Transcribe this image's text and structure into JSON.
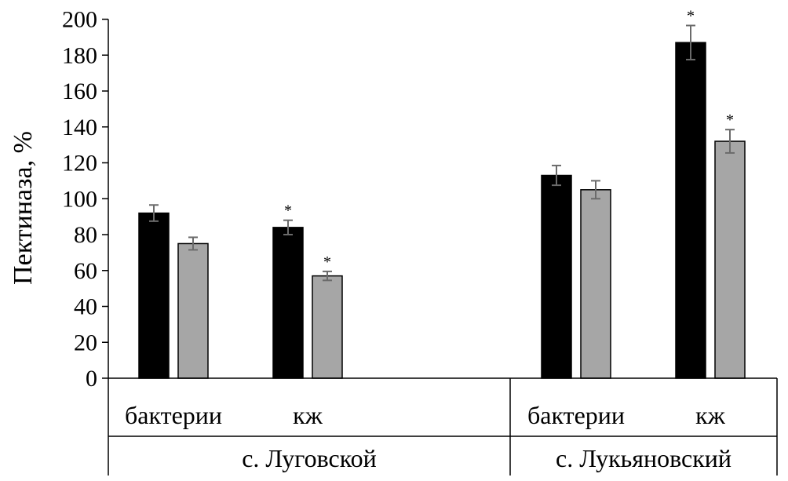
{
  "chart_data": {
    "type": "bar",
    "ylabel": "Пектиназа, %",
    "ylim": [
      0,
      200
    ],
    "yticks": [
      0,
      20,
      40,
      60,
      80,
      100,
      120,
      140,
      160,
      180,
      200
    ],
    "grid": false,
    "groups": [
      {
        "name": "с. Луговской",
        "categories": [
          {
            "label": "бактерии",
            "bars": [
              {
                "value": 92,
                "error": 4.5,
                "significant": false
              },
              {
                "value": 75,
                "error": 3.5,
                "significant": false
              }
            ]
          },
          {
            "label": "кж",
            "bars": [
              {
                "value": 84,
                "error": 4.0,
                "significant": true
              },
              {
                "value": 57,
                "error": 2.5,
                "significant": true
              }
            ]
          }
        ]
      },
      {
        "name": "с. Лукьяновский",
        "categories": [
          {
            "label": "бактерии",
            "bars": [
              {
                "value": 113,
                "error": 5.5,
                "significant": false
              },
              {
                "value": 105,
                "error": 5.0,
                "significant": false
              }
            ]
          },
          {
            "label": "кж",
            "bars": [
              {
                "value": 187,
                "error": 9.5,
                "significant": true
              },
              {
                "value": 132,
                "error": 6.5,
                "significant": true
              }
            ]
          }
        ]
      }
    ],
    "series_colors": [
      "#000000",
      "#a6a6a6"
    ],
    "significance_mark": "*"
  }
}
